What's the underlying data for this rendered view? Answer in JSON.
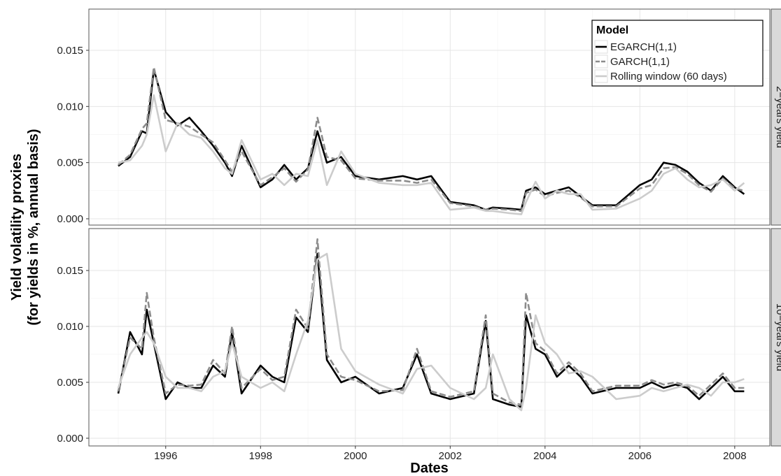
{
  "chart_data": [
    {
      "type": "line",
      "strip_label": "2−years yield",
      "ylabel": [
        "Yield volatility proxies",
        "(for yields in %, annual basis)"
      ],
      "legend_title": "Model",
      "legend_position": "top-right",
      "grid": true,
      "xlim": [
        1994.38,
        2008.74
      ],
      "ylim": [
        -0.00056,
        0.01867
      ],
      "yticks": [
        {
          "value": 0,
          "label": "0.000"
        },
        {
          "value": 0.005,
          "label": "0.005"
        },
        {
          "value": 0.01,
          "label": "0.010"
        },
        {
          "value": 0.015,
          "label": "0.015"
        }
      ],
      "x": [
        1995.0,
        1995.25,
        1995.5,
        1995.6,
        1995.75,
        1996.0,
        1996.25,
        1996.5,
        1996.75,
        1997.0,
        1997.25,
        1997.4,
        1997.6,
        1998.0,
        1998.25,
        1998.5,
        1998.75,
        1999.0,
        1999.2,
        1999.4,
        1999.7,
        2000.0,
        2000.5,
        2001.0,
        2001.3,
        2001.6,
        2002.0,
        2002.5,
        2002.75,
        2002.9,
        2003.25,
        2003.5,
        2003.6,
        2003.8,
        2004.0,
        2004.25,
        2004.5,
        2004.75,
        2005.0,
        2005.5,
        2006.0,
        2006.25,
        2006.5,
        2006.75,
        2007.0,
        2007.25,
        2007.5,
        2007.75,
        2008.0,
        2008.2
      ],
      "series": [
        {
          "name": "EGARCH(1,1)",
          "color": "#000000",
          "dash": false,
          "values": [
            0.0047,
            0.0055,
            0.0078,
            0.0076,
            0.0133,
            0.0095,
            0.0083,
            0.009,
            0.0078,
            0.0065,
            0.005,
            0.0038,
            0.0065,
            0.0028,
            0.0035,
            0.0048,
            0.0035,
            0.0045,
            0.0078,
            0.005,
            0.0055,
            0.0038,
            0.0035,
            0.0038,
            0.0035,
            0.0038,
            0.0015,
            0.0012,
            0.0008,
            0.001,
            0.0009,
            0.0008,
            0.0025,
            0.0028,
            0.0022,
            0.0025,
            0.0028,
            0.002,
            0.0012,
            0.0012,
            0.003,
            0.0035,
            0.005,
            0.0048,
            0.0042,
            0.0032,
            0.0025,
            0.0038,
            0.0028,
            0.0022
          ]
        },
        {
          "name": "GARCH(1,1)",
          "color": "#8c8c8c",
          "dash": true,
          "values": [
            0.0048,
            0.0057,
            0.008,
            0.0085,
            0.0135,
            0.0088,
            0.0085,
            0.0082,
            0.0075,
            0.0068,
            0.0052,
            0.0042,
            0.006,
            0.003,
            0.0037,
            0.0045,
            0.0033,
            0.0044,
            0.009,
            0.0055,
            0.0052,
            0.0036,
            0.0034,
            0.0034,
            0.0032,
            0.0035,
            0.0014,
            0.0011,
            0.0008,
            0.0009,
            0.0008,
            0.0007,
            0.0023,
            0.0026,
            0.002,
            0.0023,
            0.0025,
            0.0019,
            0.0011,
            0.0011,
            0.0027,
            0.003,
            0.0045,
            0.0046,
            0.004,
            0.003,
            0.0024,
            0.0036,
            0.0027,
            0.0025
          ]
        },
        {
          "name": "Rolling window (60 days)",
          "color": "#cccccc",
          "dash": false,
          "values": [
            0.005,
            0.0052,
            0.0065,
            0.0075,
            0.011,
            0.006,
            0.0085,
            0.0075,
            0.0072,
            0.006,
            0.0045,
            0.004,
            0.007,
            0.0035,
            0.004,
            0.003,
            0.004,
            0.0038,
            0.007,
            0.003,
            0.006,
            0.004,
            0.0032,
            0.003,
            0.003,
            0.0032,
            0.0008,
            0.001,
            0.0007,
            0.0007,
            0.0005,
            0.0004,
            0.0015,
            0.0033,
            0.0018,
            0.0025,
            0.0022,
            0.0022,
            0.0008,
            0.0009,
            0.0018,
            0.0025,
            0.004,
            0.0045,
            0.0035,
            0.0028,
            0.003,
            0.0035,
            0.0025,
            0.0032
          ]
        }
      ]
    },
    {
      "type": "line",
      "strip_label": "10−years yield",
      "xlabel": "Dates",
      "grid": true,
      "xlim": [
        1994.38,
        2008.74
      ],
      "ylim": [
        -0.00069,
        0.01875
      ],
      "xticks": [
        1996,
        1998,
        2000,
        2002,
        2004,
        2006,
        2008
      ],
      "yticks": [
        {
          "value": 0,
          "label": "0.000"
        },
        {
          "value": 0.005,
          "label": "0.005"
        },
        {
          "value": 0.01,
          "label": "0.010"
        },
        {
          "value": 0.015,
          "label": "0.015"
        }
      ],
      "x": [
        1995.0,
        1995.25,
        1995.5,
        1995.6,
        1995.75,
        1996.0,
        1996.25,
        1996.5,
        1996.75,
        1997.0,
        1997.25,
        1997.4,
        1997.6,
        1998.0,
        1998.25,
        1998.5,
        1998.75,
        1999.0,
        1999.2,
        1999.4,
        1999.7,
        2000.0,
        2000.5,
        2001.0,
        2001.3,
        2001.6,
        2002.0,
        2002.5,
        2002.75,
        2002.9,
        2003.25,
        2003.5,
        2003.6,
        2003.8,
        2004.0,
        2004.25,
        2004.5,
        2004.75,
        2005.0,
        2005.5,
        2006.0,
        2006.25,
        2006.5,
        2006.75,
        2007.0,
        2007.25,
        2007.5,
        2007.75,
        2008.0,
        2008.2
      ],
      "series": [
        {
          "color": "#000000",
          "dash": false,
          "values": [
            0.004,
            0.0095,
            0.0075,
            0.0115,
            0.0085,
            0.0035,
            0.005,
            0.0045,
            0.0045,
            0.0065,
            0.0055,
            0.0095,
            0.004,
            0.0065,
            0.0055,
            0.005,
            0.0108,
            0.0095,
            0.0165,
            0.007,
            0.005,
            0.0055,
            0.004,
            0.0045,
            0.0075,
            0.004,
            0.0035,
            0.004,
            0.0105,
            0.0035,
            0.003,
            0.0028,
            0.011,
            0.008,
            0.0075,
            0.0055,
            0.0065,
            0.0055,
            0.004,
            0.0045,
            0.0045,
            0.005,
            0.0045,
            0.0048,
            0.0045,
            0.0035,
            0.0045,
            0.0055,
            0.0042,
            0.0042
          ]
        },
        {
          "color": "#8c8c8c",
          "dash": true,
          "values": [
            0.0042,
            0.009,
            0.008,
            0.013,
            0.009,
            0.004,
            0.0048,
            0.0047,
            0.0048,
            0.007,
            0.0058,
            0.01,
            0.0045,
            0.0062,
            0.0052,
            0.0055,
            0.0115,
            0.0098,
            0.0178,
            0.0075,
            0.0055,
            0.0052,
            0.0042,
            0.0043,
            0.008,
            0.0042,
            0.0037,
            0.0042,
            0.011,
            0.004,
            0.0032,
            0.003,
            0.013,
            0.0085,
            0.0078,
            0.0058,
            0.0068,
            0.0058,
            0.0042,
            0.0047,
            0.0047,
            0.0052,
            0.0048,
            0.005,
            0.0047,
            0.0038,
            0.0048,
            0.0058,
            0.0045,
            0.0045
          ]
        },
        {
          "color": "#cccccc",
          "dash": false,
          "values": [
            0.0045,
            0.0075,
            0.009,
            0.0095,
            0.0085,
            0.0055,
            0.0045,
            0.0045,
            0.0042,
            0.0055,
            0.006,
            0.0085,
            0.0055,
            0.0045,
            0.005,
            0.0042,
            0.0075,
            0.0105,
            0.016,
            0.0165,
            0.008,
            0.006,
            0.0048,
            0.004,
            0.0062,
            0.0065,
            0.0045,
            0.0035,
            0.0045,
            0.0075,
            0.0035,
            0.0025,
            0.0045,
            0.011,
            0.0085,
            0.0075,
            0.0058,
            0.006,
            0.0055,
            0.0035,
            0.0038,
            0.0045,
            0.0042,
            0.0045,
            0.0048,
            0.0045,
            0.0038,
            0.005,
            0.005,
            0.0053
          ]
        }
      ]
    }
  ]
}
